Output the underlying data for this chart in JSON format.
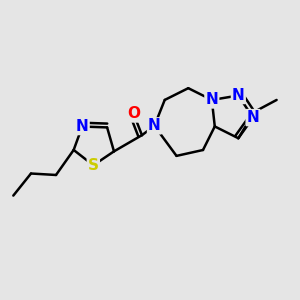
{
  "background_color": "#e5e5e5",
  "atom_colors": {
    "N": "#0000ff",
    "O": "#ff0000",
    "S": "#cccc00",
    "C": "#000000"
  },
  "bond_color": "#000000",
  "bond_width": 1.8,
  "font_size_atom": 11
}
